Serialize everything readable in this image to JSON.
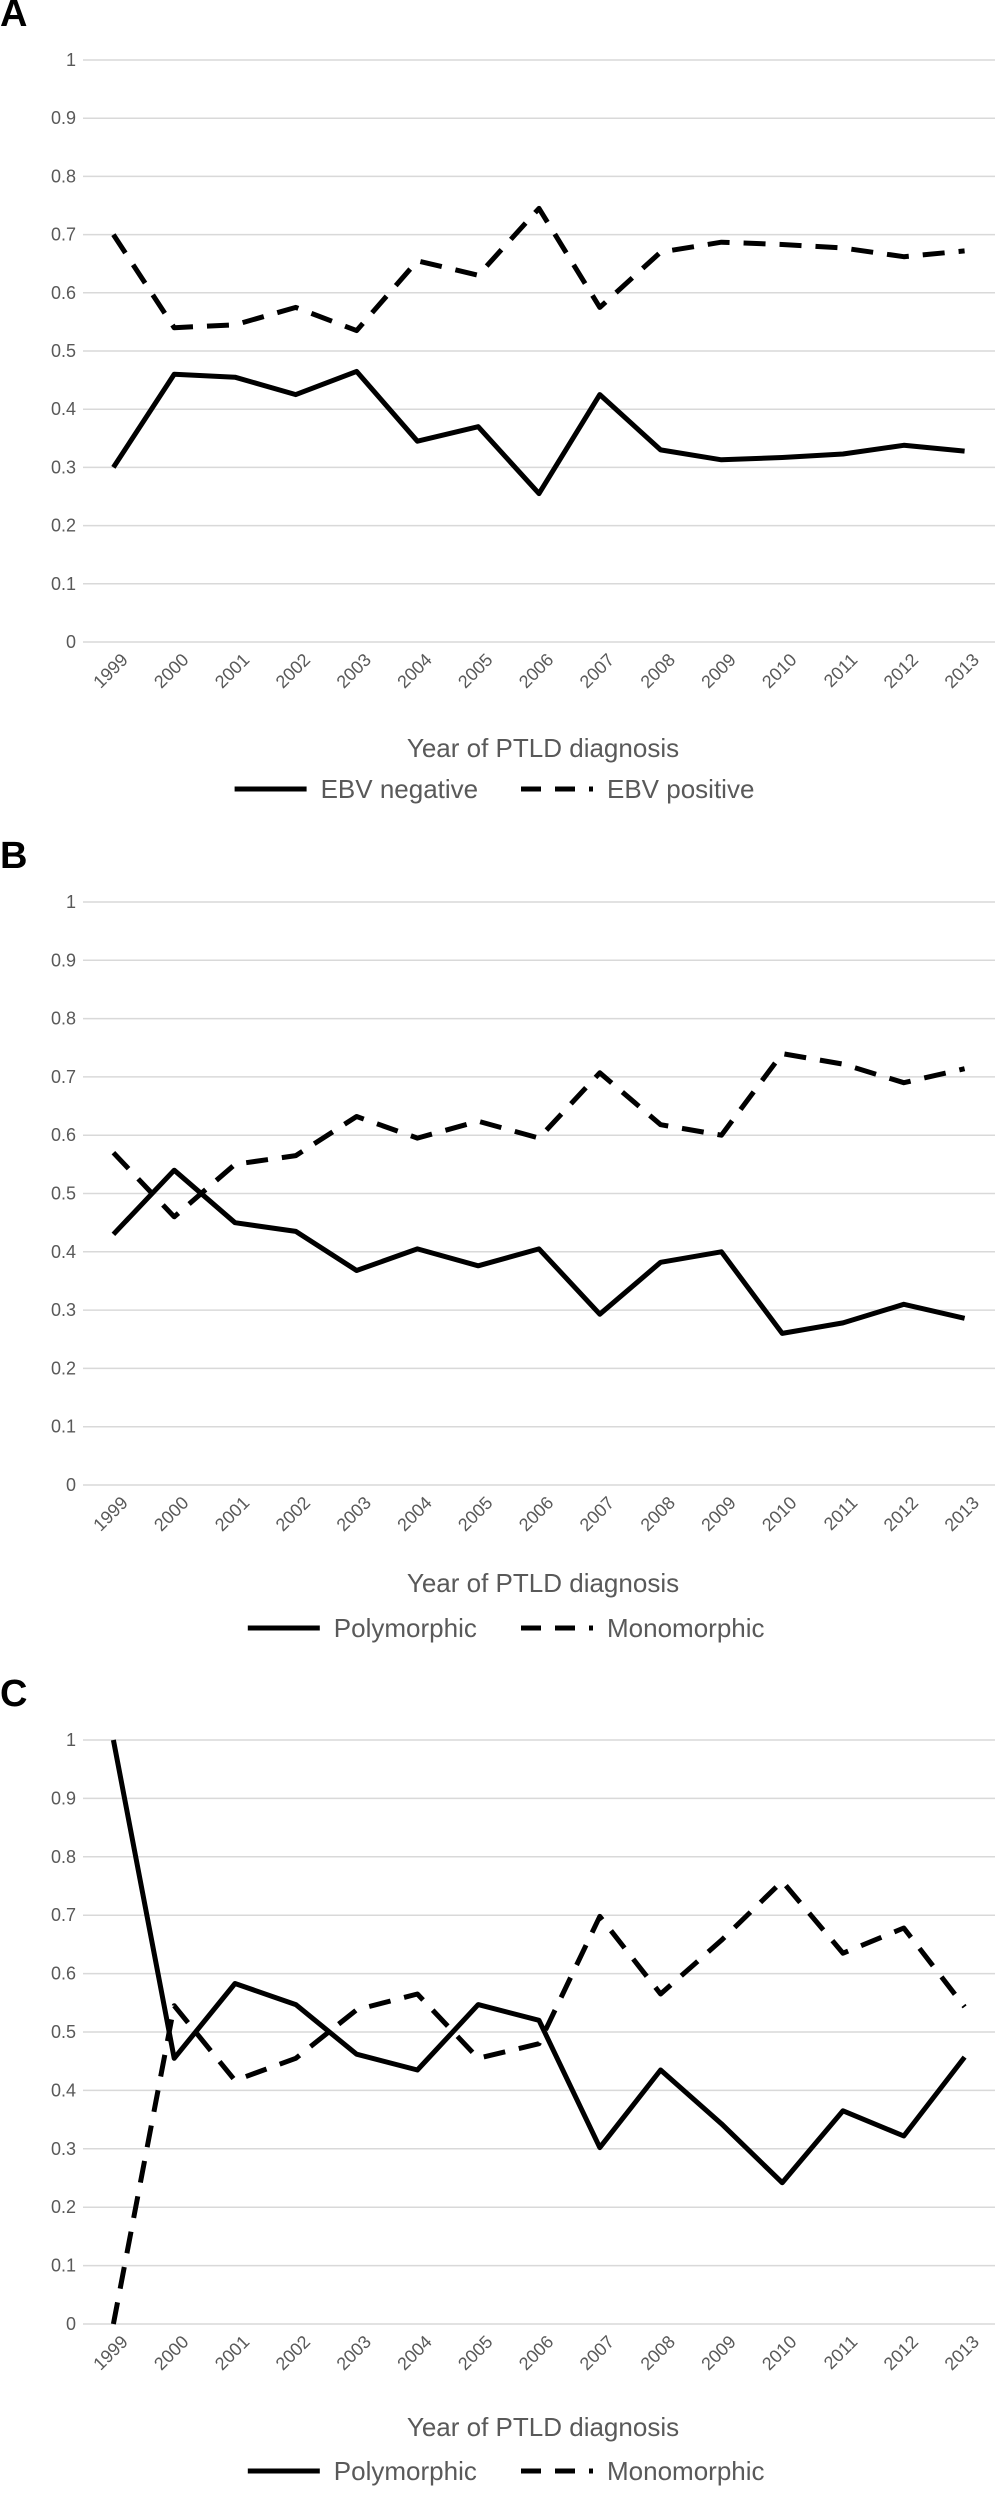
{
  "chart_data": [
    {
      "type": "line",
      "panel": "A",
      "categories": [
        "1999",
        "2000",
        "2001",
        "2002",
        "2003",
        "2004",
        "2005",
        "2006",
        "2007",
        "2008",
        "2009",
        "2010",
        "2011",
        "2012",
        "2013"
      ],
      "y_ticks": [
        "0",
        "0.1",
        "0.2",
        "0.3",
        "0.4",
        "0.5",
        "0.6",
        "0.7",
        "0.8",
        "0.9",
        "1"
      ],
      "ylim": [
        0,
        1
      ],
      "xlabel": "Year of PTLD diagnosis",
      "ylabel": "",
      "grid": true,
      "legend_position": "bottom",
      "series": [
        {
          "name": "EBV negative",
          "style": "solid",
          "color": "#000000",
          "values": [
            0.3,
            0.46,
            0.455,
            0.425,
            0.465,
            0.345,
            0.37,
            0.255,
            0.425,
            0.33,
            0.313,
            0.317,
            0.323,
            0.338,
            0.328
          ]
        },
        {
          "name": "EBV positive",
          "style": "dashed",
          "color": "#000000",
          "values": [
            0.7,
            0.54,
            0.545,
            0.575,
            0.535,
            0.655,
            0.63,
            0.745,
            0.575,
            0.67,
            0.687,
            0.683,
            0.677,
            0.662,
            0.672
          ]
        }
      ]
    },
    {
      "type": "line",
      "panel": "B",
      "categories": [
        "1999",
        "2000",
        "2001",
        "2002",
        "2003",
        "2004",
        "2005",
        "2006",
        "2007",
        "2008",
        "2009",
        "2010",
        "2011",
        "2012",
        "2013"
      ],
      "y_ticks": [
        "0",
        "0.1",
        "0.2",
        "0.3",
        "0.4",
        "0.5",
        "0.6",
        "0.7",
        "0.8",
        "0.9",
        "1"
      ],
      "ylim": [
        0,
        1
      ],
      "xlabel": "Year of PTLD diagnosis",
      "ylabel": "",
      "grid": true,
      "legend_position": "bottom",
      "series": [
        {
          "name": "Polymorphic",
          "style": "solid",
          "color": "#000000",
          "values": [
            0.43,
            0.54,
            0.45,
            0.435,
            0.368,
            0.405,
            0.376,
            0.405,
            0.293,
            0.382,
            0.4,
            0.26,
            0.278,
            0.31,
            0.286
          ]
        },
        {
          "name": "Monomorphic",
          "style": "dashed",
          "color": "#000000",
          "values": [
            0.57,
            0.46,
            0.55,
            0.565,
            0.632,
            0.595,
            0.624,
            0.595,
            0.707,
            0.618,
            0.6,
            0.74,
            0.722,
            0.69,
            0.714
          ]
        }
      ]
    },
    {
      "type": "line",
      "panel": "C",
      "categories": [
        "1999",
        "2000",
        "2001",
        "2002",
        "2003",
        "2004",
        "2005",
        "2006",
        "2007",
        "2008",
        "2009",
        "2010",
        "2011",
        "2012",
        "2013"
      ],
      "y_ticks": [
        "0",
        "0.1",
        "0.2",
        "0.3",
        "0.4",
        "0.5",
        "0.6",
        "0.7",
        "0.8",
        "0.9",
        "1"
      ],
      "ylim": [
        0,
        1
      ],
      "xlabel": "Year of PTLD diagnosis",
      "ylabel": "",
      "grid": true,
      "legend_position": "bottom",
      "series": [
        {
          "name": "Polymorphic",
          "style": "solid",
          "color": "#000000",
          "values": [
            1.0,
            0.455,
            0.583,
            0.547,
            0.462,
            0.435,
            0.547,
            0.52,
            0.302,
            0.435,
            0.343,
            0.242,
            0.365,
            0.322,
            0.457
          ]
        },
        {
          "name": "Monomorphic",
          "style": "dashed",
          "color": "#000000",
          "values": [
            0.0,
            0.545,
            0.417,
            0.455,
            0.538,
            0.565,
            0.455,
            0.48,
            0.698,
            0.565,
            0.657,
            0.758,
            0.635,
            0.678,
            0.543
          ]
        }
      ]
    }
  ]
}
